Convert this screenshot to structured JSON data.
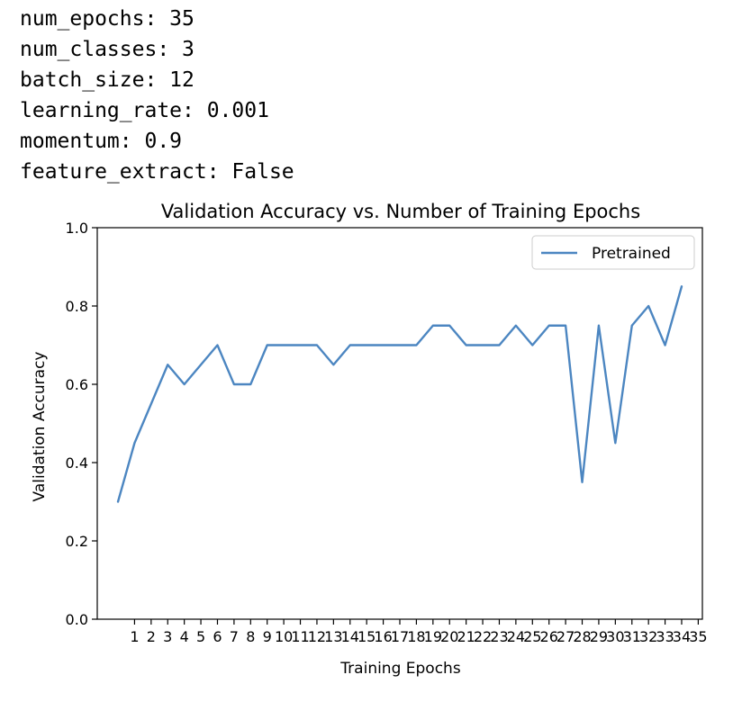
{
  "config": {
    "lines": [
      "num_epochs: 35",
      "num_classes: 3",
      "batch_size: 12",
      "learning_rate: 0.001",
      "momentum: 0.9",
      "feature_extract: False"
    ]
  },
  "chart_data": {
    "type": "line",
    "title": "Validation Accuracy vs. Number of Training Epochs",
    "xlabel": "Training Epochs",
    "ylabel": "Validation Accuracy",
    "xlim": [
      -1.25,
      35.25
    ],
    "ylim": [
      0,
      1.0
    ],
    "xticks": [
      1,
      2,
      3,
      4,
      5,
      6,
      7,
      8,
      9,
      10,
      11,
      12,
      13,
      14,
      15,
      16,
      17,
      18,
      19,
      20,
      21,
      22,
      23,
      24,
      25,
      26,
      27,
      28,
      29,
      30,
      31,
      32,
      33,
      34,
      35
    ],
    "yticks": [
      "0.0",
      "0.2",
      "0.4",
      "0.6",
      "0.8",
      "1.0"
    ],
    "grid": false,
    "legend_position": "top-right",
    "color": "#4c86c1",
    "series": [
      {
        "name": "Pretrained",
        "x": [
          0,
          1,
          2,
          3,
          4,
          5,
          6,
          7,
          8,
          9,
          10,
          11,
          12,
          13,
          14,
          15,
          16,
          17,
          18,
          19,
          20,
          21,
          22,
          23,
          24,
          25,
          26,
          27,
          28,
          29,
          30,
          31,
          32,
          33,
          34
        ],
        "values": [
          0.3,
          0.45,
          0.55,
          0.65,
          0.6,
          0.65,
          0.7,
          0.6,
          0.6,
          0.7,
          0.7,
          0.7,
          0.7,
          0.65,
          0.7,
          0.7,
          0.7,
          0.7,
          0.7,
          0.75,
          0.75,
          0.7,
          0.7,
          0.7,
          0.75,
          0.7,
          0.75,
          0.75,
          0.35,
          0.75,
          0.45,
          0.75,
          0.8,
          0.7,
          0.85
        ]
      }
    ]
  }
}
